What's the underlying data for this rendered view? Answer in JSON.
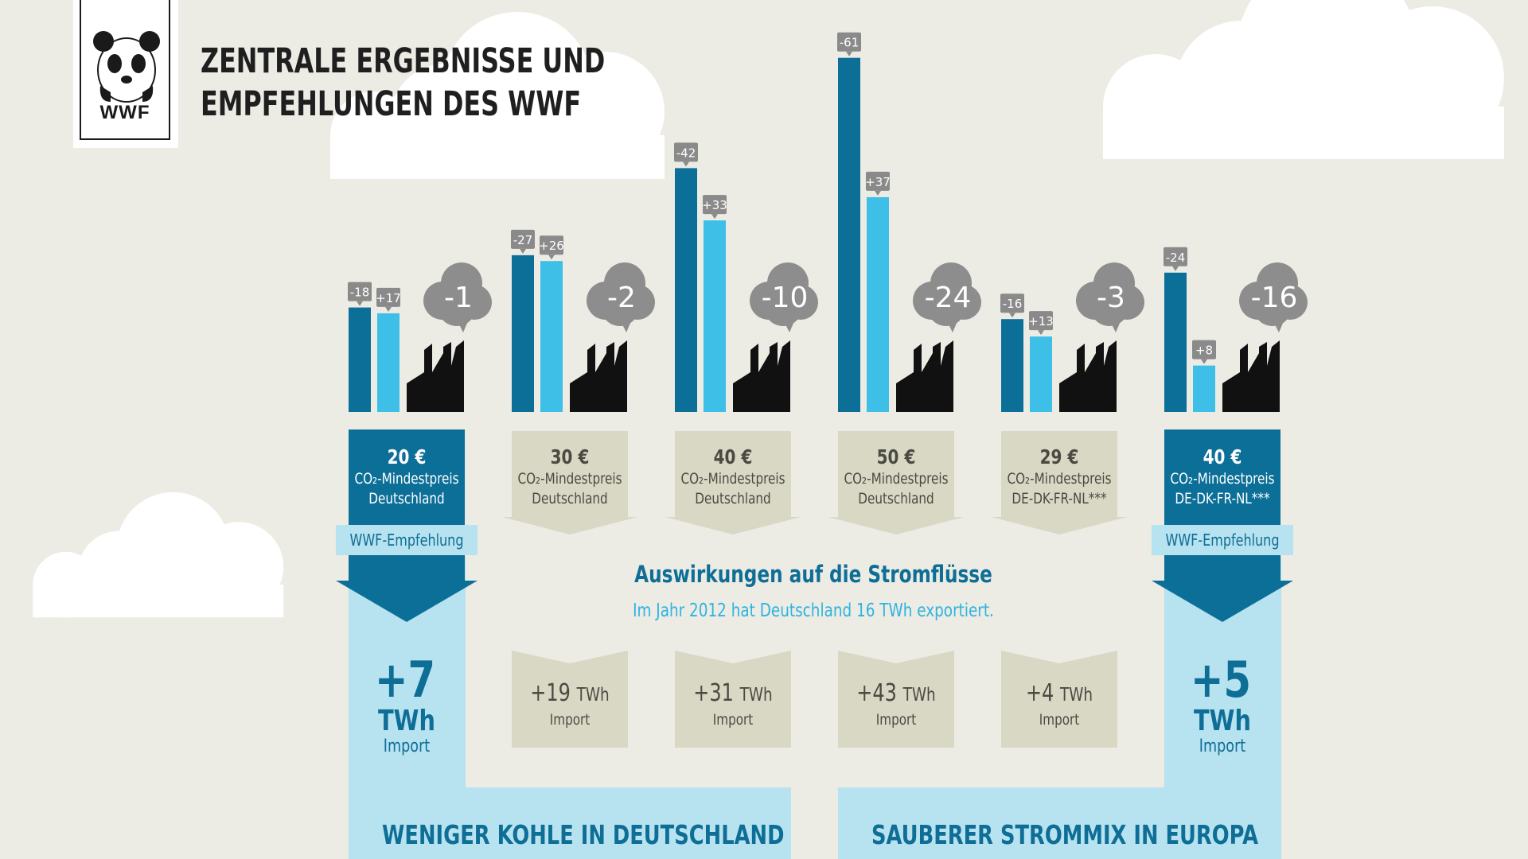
{
  "logo": {
    "text": "WWF"
  },
  "title": {
    "line1": "ZENTRALE ERGEBNISSE UND",
    "line2": "EMPFEHLUNGEN DES WWF"
  },
  "colors": {
    "background": "#ecebe4",
    "dark_blue": "#0c6f98",
    "light_blue": "#3dbfe8",
    "pale_blue": "#b7e2f0",
    "beige": "#d9d8c5",
    "factory": "#111111",
    "cloud": "#8d8d8d",
    "value_tag": "#8a8a8a",
    "text_blue": "#0e6e96",
    "text_lightblue": "#2eb4e0"
  },
  "chart_data": {
    "type": "bar",
    "title": "",
    "xlabel": "",
    "ylabel": "",
    "ylim": [
      -70,
      0
    ],
    "categories": [
      "20 €",
      "30 €",
      "40 €",
      "50 €",
      "29 €",
      "40 €"
    ],
    "series": [
      {
        "values": [
          -18,
          -27,
          -42,
          -61,
          -16,
          -24
        ],
        "labels": [
          "-18",
          "-27",
          "-42",
          "-61",
          "-16",
          "-24"
        ]
      },
      {
        "values": [
          17,
          26,
          33,
          37,
          13,
          8
        ],
        "labels": [
          "+17",
          "+26",
          "+33",
          "+37",
          "+13",
          "+8"
        ]
      }
    ],
    "co2_change": [
      "-1",
      "-2",
      "-10",
      "-24",
      "-3",
      "-16"
    ]
  },
  "scenarios": [
    {
      "price": "20 €",
      "desc_line1": "CO₂-Mindestpreis",
      "desc_line2": "Deutschland",
      "recommended": true,
      "badge": "WWF-Empfehlung",
      "import_value": "+7",
      "import_unit": "TWh",
      "import_label": "Import"
    },
    {
      "price": "30 €",
      "desc_line1": "CO₂-Mindestpreis",
      "desc_line2": "Deutschland",
      "recommended": false,
      "import_value": "+19",
      "import_unit": "TWh",
      "import_label": "Import"
    },
    {
      "price": "40 €",
      "desc_line1": "CO₂-Mindestpreis",
      "desc_line2": "Deutschland",
      "recommended": false,
      "import_value": "+31",
      "import_unit": "TWh",
      "import_label": "Import"
    },
    {
      "price": "50 €",
      "desc_line1": "CO₂-Mindestpreis",
      "desc_line2": "Deutschland",
      "recommended": false,
      "import_value": "+43",
      "import_unit": "TWh",
      "import_label": "Import"
    },
    {
      "price": "29 €",
      "desc_line1": "CO₂-Mindestpreis",
      "desc_line2": "DE-DK-FR-NL***",
      "recommended": false,
      "import_value": "+4",
      "import_unit": "TWh",
      "import_label": "Import"
    },
    {
      "price": "40 €",
      "desc_line1": "CO₂-Mindestpreis",
      "desc_line2": "DE-DK-FR-NL***",
      "recommended": true,
      "badge": "WWF-Empfehlung",
      "import_value": "+5",
      "import_unit": "TWh",
      "import_label": "Import"
    }
  ],
  "flows": {
    "heading": "Auswirkungen auf die Stromflüsse",
    "subheading": "Im Jahr 2012 hat Deutschland 16 TWh exportiert."
  },
  "bottom": {
    "left": "WENIGER KOHLE IN DEUTSCHLAND",
    "right": "SAUBERER STROMMIX IN EUROPA"
  }
}
